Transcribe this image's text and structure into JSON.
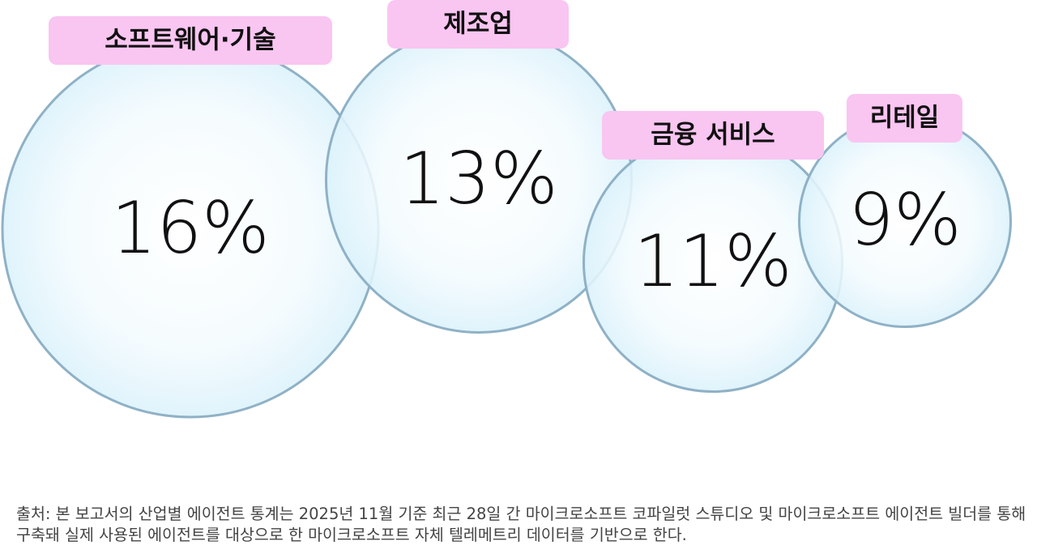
{
  "chart_data": {
    "type": "bubble",
    "categories": [
      "소프트웨어·기술",
      "제조업",
      "금융 서비스",
      "리테일"
    ],
    "values": [
      16,
      13,
      11,
      9
    ],
    "value_labels": [
      "16%",
      "13%",
      "11%",
      "9%"
    ],
    "color": "#dcf2fb",
    "edge_color": "#8fb1c6",
    "label_color": "#f9c5f1"
  },
  "note": "출처: 본 보고서의 산업별 에이전트 통계는 2025년 11월 기준 최근 28일 간 마이크로소프트 코파일럿 스튜디오 및 마이크로소프트 에이전트 빌더를 통해 구축돼 실제 사용된 에이전트를 대상으로 한 마이크로소프트 자체 텔레메트리 데이터를 기반으로 한다."
}
